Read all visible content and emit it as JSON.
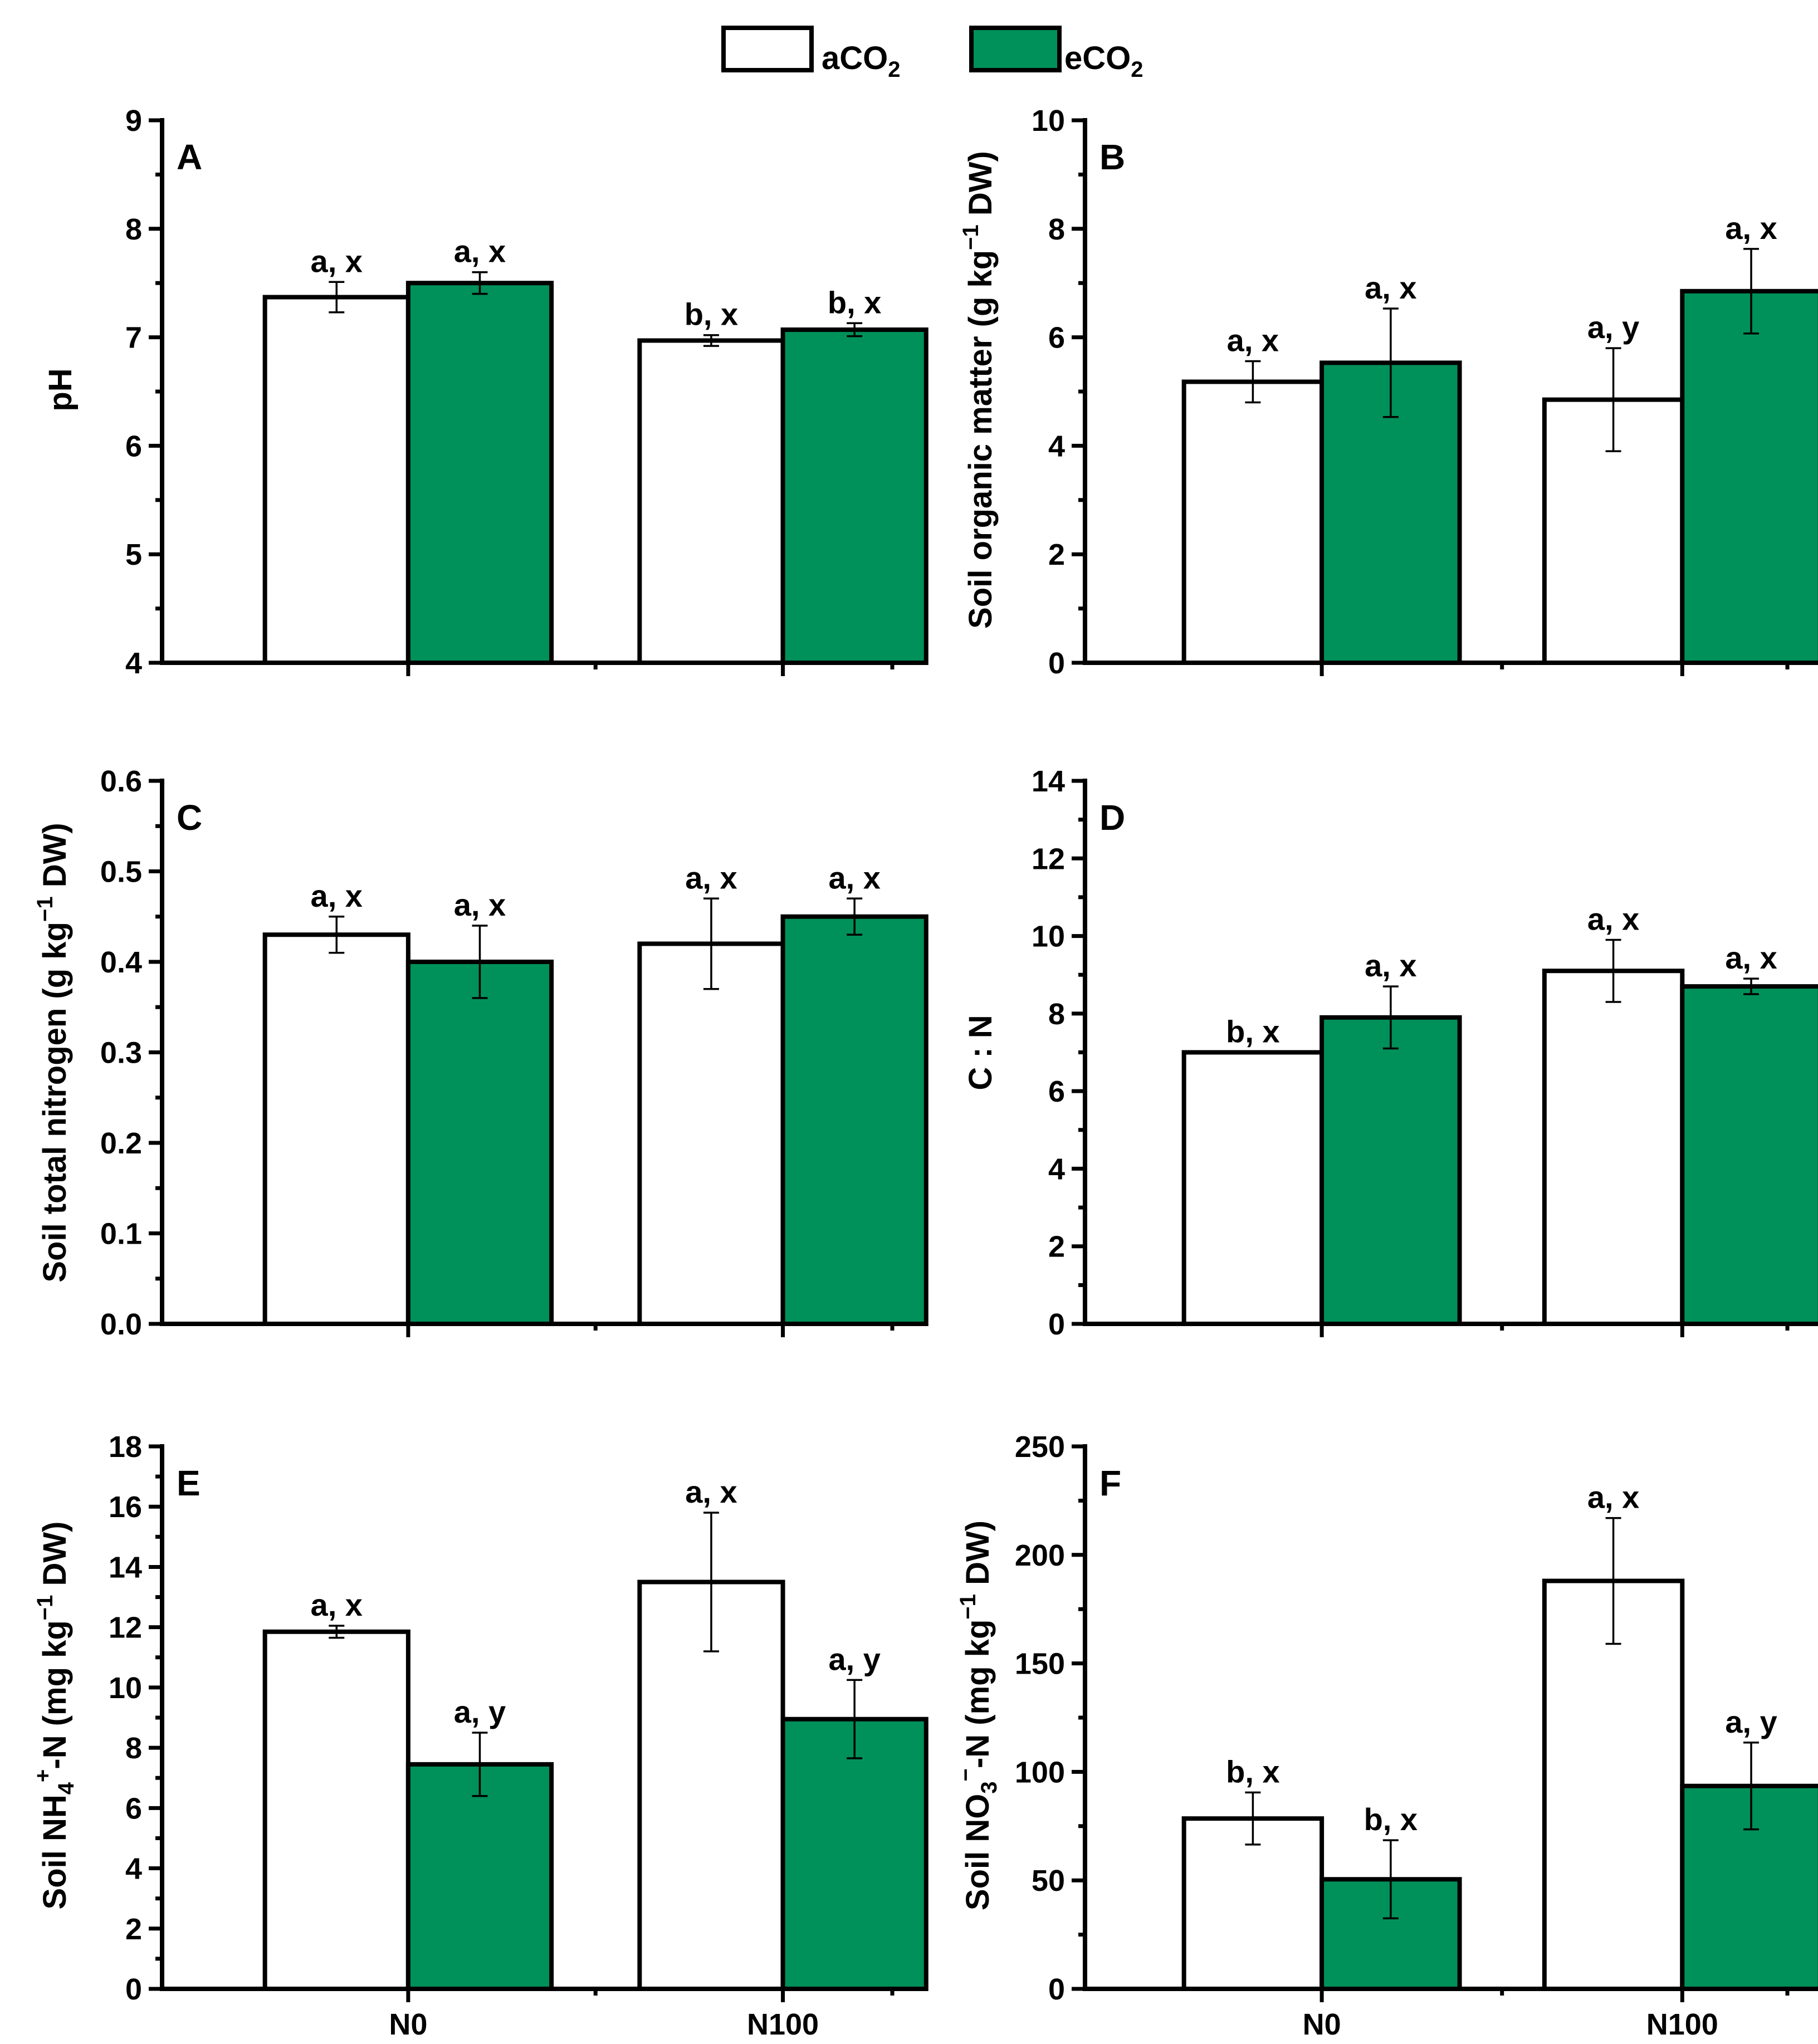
{
  "chart_data": [
    {
      "id": "A",
      "type": "bar",
      "panel_label": "A",
      "ylabel": "pH",
      "categories": [
        "N0",
        "N100"
      ],
      "ylim": [
        4,
        9
      ],
      "yticks": [
        4,
        5,
        6,
        7,
        8,
        9
      ],
      "series": [
        {
          "name": "aCO2",
          "values": [
            7.37,
            6.97
          ],
          "errors": [
            0.14,
            0.05
          ],
          "labels": [
            "a, x",
            "b, x"
          ]
        },
        {
          "name": "eCO2",
          "values": [
            7.5,
            7.07
          ],
          "errors": [
            0.1,
            0.06
          ],
          "labels": [
            "a, x",
            "b, x"
          ]
        }
      ]
    },
    {
      "id": "B",
      "type": "bar",
      "panel_label": "B",
      "ylabel": "Soil organic matter (g kg⁻¹ DW)",
      "categories": [
        "N0",
        "N100"
      ],
      "ylim": [
        0,
        10
      ],
      "yticks": [
        0,
        2,
        4,
        6,
        8,
        10
      ],
      "series": [
        {
          "name": "aCO2",
          "values": [
            5.18,
            4.85
          ],
          "errors": [
            0.38,
            0.95
          ],
          "labels": [
            "a, x",
            "a, y"
          ]
        },
        {
          "name": "eCO2",
          "values": [
            5.53,
            6.85
          ],
          "errors": [
            1.0,
            0.78
          ],
          "labels": [
            "a, x",
            "a, x"
          ]
        }
      ]
    },
    {
      "id": "C",
      "type": "bar",
      "panel_label": "C",
      "ylabel": "Soil total nitrogen (g kg⁻¹ DW)",
      "categories": [
        "N0",
        "N100"
      ],
      "ylim": [
        0.0,
        0.6
      ],
      "yticks": [
        0.0,
        0.1,
        0.2,
        0.3,
        0.4,
        0.5,
        0.6
      ],
      "tick_decimals": 1,
      "series": [
        {
          "name": "aCO2",
          "values": [
            0.43,
            0.42
          ],
          "errors": [
            0.02,
            0.05
          ],
          "labels": [
            "a, x",
            "a, x"
          ]
        },
        {
          "name": "eCO2",
          "values": [
            0.4,
            0.45
          ],
          "errors": [
            0.04,
            0.02
          ],
          "labels": [
            "a, x",
            "a, x"
          ]
        }
      ]
    },
    {
      "id": "D",
      "type": "bar",
      "panel_label": "D",
      "ylabel": "C : N",
      "categories": [
        "N0",
        "N100"
      ],
      "ylim": [
        0,
        14
      ],
      "yticks": [
        0,
        2,
        4,
        6,
        8,
        10,
        12,
        14
      ],
      "series": [
        {
          "name": "aCO2",
          "values": [
            7.0,
            9.1
          ],
          "errors": [
            0.0,
            0.8
          ],
          "labels": [
            "b, x",
            "a, x"
          ]
        },
        {
          "name": "eCO2",
          "values": [
            7.9,
            8.7
          ],
          "errors": [
            0.8,
            0.2
          ],
          "labels": [
            "a, x",
            "a, x"
          ]
        }
      ]
    },
    {
      "id": "E",
      "type": "bar",
      "panel_label": "E",
      "ylabel": "Soil NH₄⁺-N (mg kg⁻¹ DW)",
      "categories": [
        "N0",
        "N100"
      ],
      "ylim": [
        0,
        18
      ],
      "yticks": [
        0,
        2,
        4,
        6,
        8,
        10,
        12,
        14,
        16,
        18
      ],
      "series": [
        {
          "name": "aCO2",
          "values": [
            11.85,
            13.5
          ],
          "errors": [
            0.2,
            2.3
          ],
          "labels": [
            "a, x",
            "a, x"
          ]
        },
        {
          "name": "eCO2",
          "values": [
            7.45,
            8.95
          ],
          "errors": [
            1.05,
            1.3
          ],
          "labels": [
            "a, y",
            "a, y"
          ]
        }
      ]
    },
    {
      "id": "F",
      "type": "bar",
      "panel_label": "F",
      "ylabel": "Soil NO₃⁻-N (mg kg⁻¹ DW)",
      "categories": [
        "N0",
        "N100"
      ],
      "ylim": [
        0,
        250
      ],
      "yticks": [
        0,
        50,
        100,
        150,
        200,
        250
      ],
      "series": [
        {
          "name": "aCO2",
          "values": [
            78.5,
            188
          ],
          "errors": [
            12,
            29
          ],
          "labels": [
            "b, x",
            "a, x"
          ]
        },
        {
          "name": "eCO2",
          "values": [
            50.5,
            93.5
          ],
          "errors": [
            18,
            20
          ],
          "labels": [
            "b, x",
            "a, y"
          ]
        }
      ]
    }
  ],
  "legend": [
    {
      "name": "aCO2",
      "label": "aCO",
      "subscript": "2",
      "color": "#ffffff"
    },
    {
      "name": "eCO2",
      "label": "eCO",
      "subscript": "2",
      "color": "#00915a"
    }
  ],
  "colors": {
    "aCO2": "#ffffff",
    "eCO2": "#00915a"
  }
}
